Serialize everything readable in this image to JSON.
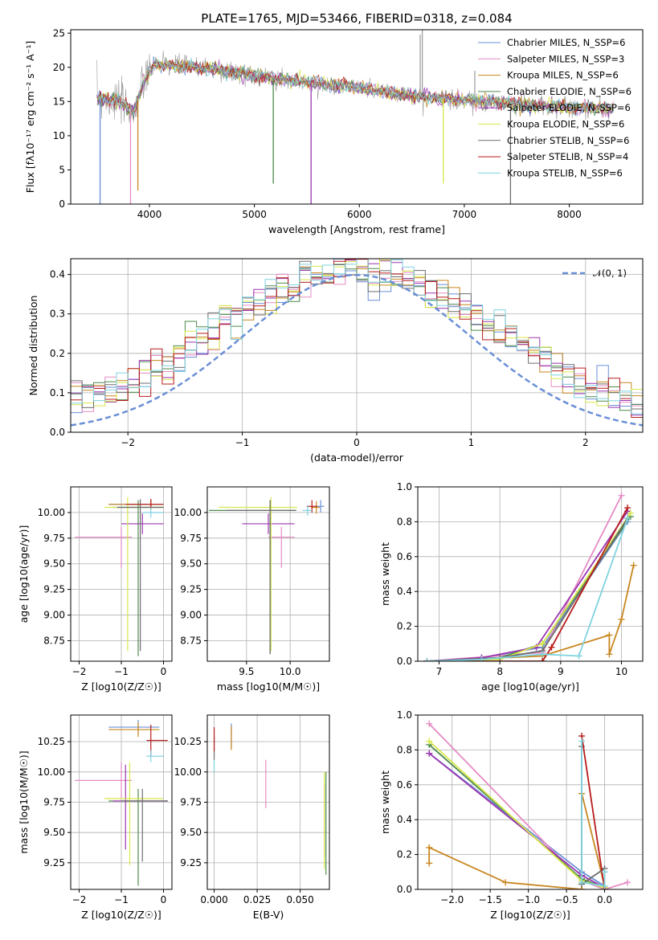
{
  "figure_title": "PLATE=1765, MJD=53466, FIBERID=0318, z=0.084",
  "colors": {
    "Chabrier MILES": "#6a8fd6",
    "Salpeter MILES": "#e58bc4",
    "Kroupa MILES": "#c8861f",
    "Chabrier ELODIE": "#4c8a4c",
    "Salpeter ELODIE": "#9b35b0",
    "Kroupa ELODIE": "#d8e84a",
    "Chabrier STELIB": "#6d6d6d",
    "Salpeter STELIB": "#b81c1c",
    "Kroupa STELIB": "#7fd3e0"
  },
  "chart_data": [
    {
      "id": "spectrum",
      "type": "line",
      "xlabel": "wavelength [Angstrom, rest frame]",
      "ylabel": "Flux [fλ10⁻¹⁷ erg cm⁻² s⁻¹ A⁻¹]",
      "xlim": [
        3250,
        8700
      ],
      "ylim": [
        0,
        25.5
      ],
      "xticks": [
        "4000",
        "5000",
        "6000",
        "7000",
        "8000"
      ],
      "yticks": [
        "0",
        "5",
        "10",
        "15",
        "20",
        "25"
      ],
      "grid": false,
      "legend_position": "top-right",
      "data_color": "#999999",
      "continuum": [
        [
          3500,
          15.5
        ],
        [
          3700,
          15
        ],
        [
          3850,
          13.5
        ],
        [
          3950,
          18
        ],
        [
          4050,
          20.5
        ],
        [
          4300,
          20.2
        ],
        [
          4600,
          19.8
        ],
        [
          5000,
          18.8
        ],
        [
          5500,
          17.8
        ],
        [
          6000,
          17
        ],
        [
          6500,
          15.8
        ],
        [
          7000,
          15.2
        ],
        [
          7500,
          14.6
        ],
        [
          8000,
          14.1
        ],
        [
          8400,
          13.9
        ]
      ],
      "absorption_lines": [
        [
          3530,
          0
        ],
        [
          3820,
          0
        ],
        [
          3890,
          2
        ],
        [
          5180,
          3
        ],
        [
          5540,
          0
        ],
        [
          6800,
          3
        ],
        [
          7440,
          0
        ]
      ],
      "emission_lines": [
        [
          6580,
          24.8
        ],
        [
          6600,
          25.5
        ],
        [
          7100,
          19.5
        ]
      ],
      "series": [
        {
          "name": "Chabrier MILES",
          "label": "Chabrier MILES, N_SSP=6"
        },
        {
          "name": "Salpeter MILES",
          "label": "Salpeter MILES, N_SSP=3"
        },
        {
          "name": "Kroupa MILES",
          "label": "Kroupa MILES, N_SSP=6"
        },
        {
          "name": "Chabrier ELODIE",
          "label": "Chabrier ELODIE, N_SSP=6"
        },
        {
          "name": "Salpeter ELODIE",
          "label": "Salpeter ELODIE, N_SSP=6"
        },
        {
          "name": "Kroupa ELODIE",
          "label": "Kroupa ELODIE, N_SSP=6"
        },
        {
          "name": "Chabrier STELIB",
          "label": "Chabrier STELIB, N_SSP=6"
        },
        {
          "name": "Salpeter STELIB",
          "label": "Salpeter STELIB, N_SSP=4"
        },
        {
          "name": "Kroupa STELIB",
          "label": "Kroupa STELIB, N_SSP=6"
        }
      ]
    },
    {
      "id": "residuals",
      "type": "histogram",
      "xlabel": "(data-model)/error",
      "ylabel": "Normed distribution",
      "xlim": [
        -2.5,
        2.5
      ],
      "ylim": [
        0,
        0.44
      ],
      "xticks": [
        "−2",
        "−1",
        "0",
        "1",
        "2"
      ],
      "yticks": [
        "0.0",
        "0.1",
        "0.2",
        "0.3",
        "0.4"
      ],
      "grid": true,
      "legend_position": "top-right",
      "reference": {
        "label": "𝒩(0, 1)",
        "mean": 0,
        "sigma": 1,
        "color": "#6a8fd6"
      },
      "bin_width": 0.1
    },
    {
      "id": "age_vs_Z",
      "type": "scatter",
      "xlabel": "Z [log10(Z/Z☉)]",
      "ylabel": "age  [log10(age/yr)]",
      "xlim": [
        -2.2,
        0.2
      ],
      "ylim": [
        8.55,
        10.25
      ],
      "xticks": [
        "−2",
        "−1",
        "0"
      ],
      "yticks": [
        "8.75",
        "9.00",
        "9.25",
        "9.50",
        "9.75",
        "10.00"
      ],
      "grid": true,
      "points": [
        {
          "s": "Chabrier MILES",
          "x": -0.3,
          "y": 10.08,
          "xerr": [
            1.0,
            0.3
          ],
          "yerr": [
            0.05,
            0.05
          ]
        },
        {
          "s": "Salpeter MILES",
          "x": -1.0,
          "y": 9.76,
          "xerr": [
            1.1,
            0.25
          ],
          "yerr": [
            0.3,
            0.1
          ]
        },
        {
          "s": "Kroupa MILES",
          "x": -0.3,
          "y": 10.08,
          "xerr": [
            1.0,
            0.3
          ],
          "yerr": [
            0.05,
            0.05
          ]
        },
        {
          "s": "Chabrier ELODIE",
          "x": -0.6,
          "y": 10.05,
          "xerr": [
            0.6,
            0.6
          ],
          "yerr": [
            1.45,
            0.07
          ]
        },
        {
          "s": "Salpeter ELODIE",
          "x": -0.5,
          "y": 9.89,
          "xerr": [
            0.5,
            0.5
          ],
          "yerr": [
            0.1,
            0.1
          ]
        },
        {
          "s": "Kroupa ELODIE",
          "x": -0.85,
          "y": 10.05,
          "xerr": [
            0.55,
            0.85
          ],
          "yerr": [
            1.4,
            0.1
          ]
        },
        {
          "s": "Chabrier STELIB",
          "x": -0.55,
          "y": 10.05,
          "xerr": [
            0.55,
            0.55
          ],
          "yerr": [
            1.4,
            0.08
          ]
        },
        {
          "s": "Salpeter STELIB",
          "x": -0.3,
          "y": 10.08,
          "xerr": [
            0.6,
            0.3
          ],
          "yerr": [
            0.05,
            0.05
          ]
        },
        {
          "s": "Kroupa STELIB",
          "x": -0.3,
          "y": 10.0,
          "xerr": [
            0.2,
            0.3
          ],
          "yerr": [
            0.05,
            0.05
          ]
        }
      ]
    },
    {
      "id": "age_vs_mass",
      "type": "scatter",
      "xlabel": "mass [log10(M/M☉)]",
      "ylabel": "",
      "xlim": [
        9.05,
        10.45
      ],
      "ylim": [
        8.55,
        10.25
      ],
      "xticks": [
        "9.5",
        "10.0"
      ],
      "yticks": [
        "8.75",
        "9.00",
        "9.25",
        "9.50",
        "9.75",
        "10.00"
      ],
      "grid": true,
      "points": [
        {
          "s": "Chabrier MILES",
          "x": 10.35,
          "y": 10.06,
          "xerr": [
            0.06,
            0.04
          ],
          "yerr": [
            0.06,
            0.06
          ]
        },
        {
          "s": "Salpeter MILES",
          "x": 9.9,
          "y": 9.76,
          "xerr": [
            0.15,
            0.15
          ],
          "yerr": [
            0.3,
            0.1
          ]
        },
        {
          "s": "Kroupa MILES",
          "x": 10.3,
          "y": 10.05,
          "xerr": [
            0.06,
            0.04
          ],
          "yerr": [
            0.06,
            0.06
          ]
        },
        {
          "s": "Chabrier ELODIE",
          "x": 9.77,
          "y": 10.02,
          "xerr": [
            0.7,
            0.3
          ],
          "yerr": [
            1.4,
            0.1
          ]
        },
        {
          "s": "Salpeter ELODIE",
          "x": 9.75,
          "y": 9.89,
          "xerr": [
            0.3,
            0.3
          ],
          "yerr": [
            0.1,
            0.1
          ]
        },
        {
          "s": "Kroupa ELODIE",
          "x": 9.78,
          "y": 10.05,
          "xerr": [
            0.6,
            0.3
          ],
          "yerr": [
            1.4,
            0.1
          ]
        },
        {
          "s": "Chabrier STELIB",
          "x": 9.77,
          "y": 10.02,
          "xerr": [
            0.5,
            0.3
          ],
          "yerr": [
            1.4,
            0.1
          ]
        },
        {
          "s": "Salpeter STELIB",
          "x": 10.25,
          "y": 10.06,
          "xerr": [
            0.06,
            0.06
          ],
          "yerr": [
            0.06,
            0.06
          ]
        },
        {
          "s": "Kroupa STELIB",
          "x": 10.2,
          "y": 10.02,
          "xerr": [
            0.06,
            0.05
          ],
          "yerr": [
            0.05,
            0.05
          ]
        }
      ]
    },
    {
      "id": "mass_weight_vs_age",
      "type": "line",
      "xlabel": "age  [log10(age/yr)]",
      "ylabel": "mass weight",
      "xlim": [
        6.65,
        10.35
      ],
      "ylim": [
        0,
        1.0
      ],
      "xticks": [
        "7",
        "8",
        "9",
        "10"
      ],
      "yticks": [
        "0.0",
        "0.2",
        "0.4",
        "0.6",
        "0.8",
        "1.0"
      ],
      "grid": true,
      "series": [
        {
          "name": "Chabrier MILES",
          "x": [
            6.8,
            7.7,
            8.7,
            10.1
          ],
          "y": [
            0.0,
            0.02,
            0.08,
            0.8
          ]
        },
        {
          "name": "Salpeter MILES",
          "x": [
            6.8,
            8.7,
            10.0
          ],
          "y": [
            0.0,
            0.05,
            0.95
          ]
        },
        {
          "name": "Kroupa MILES",
          "x": [
            6.8,
            8.7,
            9.8,
            9.8,
            10.0,
            10.2
          ],
          "y": [
            0.0,
            0.03,
            0.15,
            0.04,
            0.24,
            0.55
          ]
        },
        {
          "name": "Chabrier ELODIE",
          "x": [
            6.8,
            8.0,
            8.7,
            10.15
          ],
          "y": [
            0.0,
            0.02,
            0.1,
            0.83
          ]
        },
        {
          "name": "Salpeter ELODIE",
          "x": [
            6.8,
            7.7,
            8.6,
            10.1
          ],
          "y": [
            0.0,
            0.02,
            0.08,
            0.86
          ]
        },
        {
          "name": "Kroupa ELODIE",
          "x": [
            6.8,
            8.0,
            8.7,
            10.15
          ],
          "y": [
            0.0,
            0.01,
            0.1,
            0.85
          ]
        },
        {
          "name": "Chabrier STELIB",
          "x": [
            6.8,
            8.0,
            8.7,
            10.1
          ],
          "y": [
            0.0,
            0.02,
            0.06,
            0.82
          ]
        },
        {
          "name": "Salpeter STELIB",
          "x": [
            6.8,
            8.7,
            8.85,
            10.1
          ],
          "y": [
            0.0,
            0.0,
            0.08,
            0.88
          ]
        },
        {
          "name": "Kroupa STELIB",
          "x": [
            6.8,
            7.7,
            8.7,
            9.3,
            10.1
          ],
          "y": [
            0.0,
            0.01,
            0.04,
            0.03,
            0.82
          ]
        }
      ]
    },
    {
      "id": "mass_vs_Z",
      "type": "scatter",
      "xlabel": "Z [log10(Z/Z☉)]",
      "ylabel": "mass [log10(M/M☉)]",
      "xlim": [
        -2.2,
        0.2
      ],
      "ylim": [
        9.03,
        10.47
      ],
      "xticks": [
        "−2",
        "−1",
        "0"
      ],
      "yticks": [
        "9.25",
        "9.50",
        "9.75",
        "10.00",
        "10.25"
      ],
      "grid": true,
      "points": [
        {
          "s": "Chabrier MILES",
          "x": -0.6,
          "y": 10.37,
          "xerr": [
            0.7,
            0.5
          ],
          "yerr": [
            0.06,
            0.06
          ]
        },
        {
          "s": "Salpeter MILES",
          "x": -1.0,
          "y": 9.93,
          "xerr": [
            1.1,
            0.25
          ],
          "yerr": [
            0.15,
            0.15
          ]
        },
        {
          "s": "Kroupa MILES",
          "x": -0.6,
          "y": 10.35,
          "xerr": [
            0.7,
            0.5
          ],
          "yerr": [
            0.06,
            0.06
          ]
        },
        {
          "s": "Chabrier ELODIE",
          "x": -0.6,
          "y": 9.76,
          "xerr": [
            0.7,
            0.7
          ],
          "yerr": [
            0.7,
            0.1
          ]
        },
        {
          "s": "Salpeter ELODIE",
          "x": -0.9,
          "y": 9.76,
          "xerr": [
            0.3,
            1.0
          ],
          "yerr": [
            0.4,
            0.3
          ]
        },
        {
          "s": "Kroupa ELODIE",
          "x": -0.8,
          "y": 9.78,
          "xerr": [
            0.6,
            0.8
          ],
          "yerr": [
            0.55,
            0.3
          ]
        },
        {
          "s": "Chabrier STELIB",
          "x": -0.5,
          "y": 9.76,
          "xerr": [
            0.5,
            0.6
          ],
          "yerr": [
            0.5,
            0.1
          ]
        },
        {
          "s": "Salpeter STELIB",
          "x": -0.3,
          "y": 10.26,
          "xerr": [
            0.1,
            0.4
          ],
          "yerr": [
            0.13,
            0.13
          ]
        },
        {
          "s": "Kroupa STELIB",
          "x": -0.3,
          "y": 10.13,
          "xerr": [
            0.1,
            0.3
          ],
          "yerr": [
            0.05,
            0.05
          ]
        }
      ]
    },
    {
      "id": "mass_vs_EBV",
      "type": "scatter",
      "xlabel": "E(B-V)",
      "ylabel": "",
      "xlim": [
        -0.004,
        0.067
      ],
      "ylim": [
        9.03,
        10.47
      ],
      "xticks": [
        "0.000",
        "0.025",
        "0.050"
      ],
      "yticks": [
        "9.25",
        "9.50",
        "9.75",
        "10.00",
        "10.25"
      ],
      "grid": true,
      "points": [
        {
          "s": "Chabrier MILES",
          "x": 0.01,
          "y": 10.3,
          "xerr": [
            0,
            0
          ],
          "yerr": [
            0.1,
            0.1
          ]
        },
        {
          "s": "Salpeter MILES",
          "x": 0.03,
          "y": 9.9,
          "xerr": [
            0,
            0
          ],
          "yerr": [
            0.2,
            0.2
          ]
        },
        {
          "s": "Kroupa MILES",
          "x": 0.01,
          "y": 10.28,
          "xerr": [
            0,
            0
          ],
          "yerr": [
            0.1,
            0.1
          ]
        },
        {
          "s": "Chabrier ELODIE",
          "x": 0.065,
          "y": 9.6,
          "xerr": [
            0,
            0
          ],
          "yerr": [
            0.45,
            0.4
          ]
        },
        {
          "s": "Salpeter ELODIE",
          "x": 0.064,
          "y": 9.6,
          "xerr": [
            0,
            0
          ],
          "yerr": [
            0.3,
            0.3
          ]
        },
        {
          "s": "Kroupa ELODIE",
          "x": 0.064,
          "y": 9.6,
          "xerr": [
            0,
            0
          ],
          "yerr": [
            0.4,
            0.4
          ]
        },
        {
          "s": "Chabrier STELIB",
          "x": 0.0,
          "y": 10.2,
          "xerr": [
            0,
            0
          ],
          "yerr": [
            0.1,
            0.1
          ]
        },
        {
          "s": "Salpeter STELIB",
          "x": 0.0,
          "y": 10.27,
          "xerr": [
            0,
            0
          ],
          "yerr": [
            0.1,
            0.1
          ]
        },
        {
          "s": "Kroupa STELIB",
          "x": 0.0,
          "y": 10.05,
          "xerr": [
            0,
            0
          ],
          "yerr": [
            0.05,
            0.05
          ]
        }
      ]
    },
    {
      "id": "mass_weight_vs_Z",
      "type": "line",
      "xlabel": "Z [log10(Z/Z☉)]",
      "ylabel": "mass weight",
      "xlim": [
        -2.45,
        0.5
      ],
      "ylim": [
        0,
        1.0
      ],
      "xticks": [
        "−2.0",
        "−1.5",
        "−1.0",
        "−0.5",
        "0.0"
      ],
      "yticks": [
        "0.0",
        "0.2",
        "0.4",
        "0.6",
        "0.8",
        "1.0"
      ],
      "grid": true,
      "series": [
        {
          "name": "Chabrier MILES",
          "x": [
            -2.3,
            -0.3,
            0.0
          ],
          "y": [
            0.78,
            0.1,
            0.02
          ]
        },
        {
          "name": "Salpeter MILES",
          "x": [
            -2.3,
            -0.3,
            0.0,
            0.3
          ],
          "y": [
            0.95,
            0.05,
            0.0,
            0.04
          ]
        },
        {
          "name": "Kroupa MILES",
          "x": [
            -2.3,
            -2.3,
            -1.3,
            -0.3,
            -0.3,
            0.0
          ],
          "y": [
            0.15,
            0.24,
            0.04,
            0.0,
            0.55,
            0.02
          ]
        },
        {
          "name": "Chabrier ELODIE",
          "x": [
            -2.3,
            -0.3,
            0.0
          ],
          "y": [
            0.83,
            0.06,
            0.01
          ]
        },
        {
          "name": "Salpeter ELODIE",
          "x": [
            -2.3,
            -0.3,
            0.0
          ],
          "y": [
            0.78,
            0.08,
            0.01
          ]
        },
        {
          "name": "Kroupa ELODIE",
          "x": [
            -2.3,
            -0.3,
            0.0
          ],
          "y": [
            0.85,
            0.05,
            0.01
          ]
        },
        {
          "name": "Chabrier STELIB",
          "x": [
            -0.3,
            -0.3,
            0.0
          ],
          "y": [
            0.82,
            0.03,
            0.12
          ]
        },
        {
          "name": "Salpeter STELIB",
          "x": [
            -0.3,
            0.0
          ],
          "y": [
            0.88,
            0.0
          ]
        },
        {
          "name": "Kroupa STELIB",
          "x": [
            -0.3,
            -0.3,
            0.0,
            0.0
          ],
          "y": [
            0.85,
            0.04,
            0.02,
            0.1
          ]
        }
      ]
    }
  ]
}
